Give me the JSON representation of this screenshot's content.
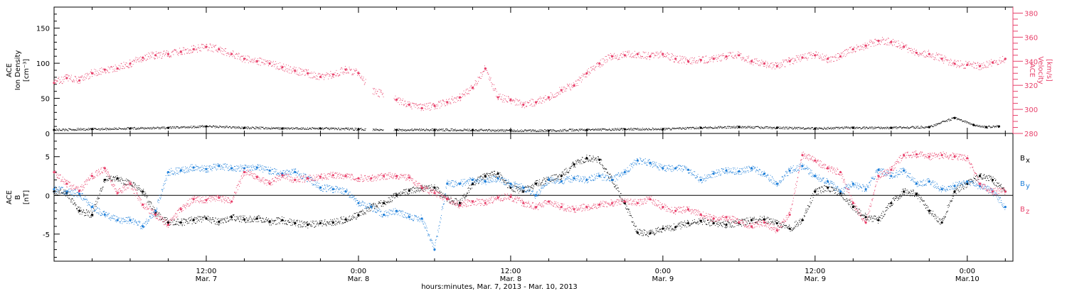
{
  "chart_data": [
    {
      "type": "scatter",
      "panel": "top",
      "ylabel_left": [
        "ACE",
        "Ion Density",
        "[cm⁻³]"
      ],
      "ylabel_right": [
        "ACE",
        "Velocity",
        "[km/s]"
      ],
      "ylim_left": [
        0,
        180
      ],
      "yticks_left": [
        0,
        50,
        100,
        150
      ],
      "ylim_right": [
        280,
        385
      ],
      "yticks_right": [
        280,
        300,
        320,
        340,
        360,
        380
      ],
      "series": [
        {
          "axis": "left",
          "color": "#000000",
          "x": [
            0,
            3,
            6,
            9,
            12,
            15,
            18,
            21,
            24,
            27,
            30,
            33,
            36,
            39,
            42,
            45,
            48,
            51,
            54,
            57,
            60,
            63,
            66,
            69,
            71,
            72.5,
            73.5,
            74.5
          ],
          "y": [
            5,
            6,
            7,
            8,
            10,
            8,
            7,
            7,
            6,
            5,
            5,
            5,
            4,
            4,
            5,
            6,
            6,
            8,
            9,
            8,
            7,
            8,
            8,
            9,
            22,
            12,
            9,
            10
          ]
        },
        {
          "axis": "right",
          "color": "#E8416B",
          "x": [
            0,
            1,
            2,
            3,
            4,
            5,
            6,
            7,
            8,
            9,
            10,
            11,
            12,
            13,
            14,
            15,
            16,
            17,
            18,
            19,
            20,
            21,
            22,
            23,
            24,
            25,
            26,
            27,
            28,
            29,
            30,
            31,
            32,
            33,
            34,
            35,
            36,
            37,
            38,
            39,
            40,
            41,
            42,
            43,
            44,
            45,
            46,
            47,
            48,
            49,
            50,
            51,
            52,
            53,
            54,
            55,
            56,
            57,
            58,
            59,
            60,
            61,
            62,
            63,
            64,
            65,
            66,
            67,
            68,
            69,
            70,
            71,
            72,
            73,
            74,
            75
          ],
          "y": [
            322,
            326,
            324,
            330,
            333,
            334,
            338,
            343,
            345,
            346,
            348,
            350,
            352,
            350,
            346,
            342,
            340,
            338,
            335,
            332,
            330,
            327,
            329,
            333,
            330,
            316,
            312,
            308,
            304,
            301,
            303,
            306,
            310,
            318,
            334,
            310,
            308,
            304,
            306,
            310,
            316,
            320,
            330,
            338,
            344,
            345,
            346,
            344,
            346,
            342,
            340,
            341,
            342,
            344,
            345,
            340,
            338,
            336,
            340,
            343,
            345,
            342,
            344,
            350,
            353,
            357,
            356,
            352,
            347,
            346,
            342,
            338,
            337,
            336,
            339,
            342
          ]
        }
      ]
    },
    {
      "type": "scatter",
      "panel": "bottom",
      "ylabel_left": [
        "ACE",
        "B",
        "[nT]"
      ],
      "ylim": [
        -8.5,
        8
      ],
      "yticks": [
        -5,
        0,
        5
      ],
      "legend_position": "right",
      "legend": [
        {
          "label": "B",
          "sub": "x",
          "color": "#000000"
        },
        {
          "label": "B",
          "sub": "y",
          "color": "#1E7FD9"
        },
        {
          "label": "B",
          "sub": "z",
          "color": "#E8416B"
        }
      ],
      "series": [
        {
          "name": "Bx",
          "color": "#000000",
          "x": [
            0,
            1,
            2,
            3,
            4,
            5,
            6,
            7,
            8,
            9,
            10,
            11,
            12,
            13,
            14,
            15,
            16,
            17,
            18,
            19,
            20,
            21,
            22,
            23,
            24,
            25,
            26,
            27,
            28,
            29,
            30,
            31,
            32,
            33,
            34,
            35,
            36,
            37,
            38,
            39,
            40,
            41,
            42,
            43,
            44,
            45,
            46,
            47,
            48,
            49,
            50,
            51,
            52,
            53,
            54,
            55,
            56,
            57,
            58,
            59,
            60,
            61,
            62,
            63,
            64,
            65,
            66,
            67,
            68,
            69,
            70,
            71,
            72,
            73,
            74,
            75
          ],
          "y": [
            0.5,
            0.3,
            -2,
            -2.5,
            2,
            2.2,
            1.5,
            0.5,
            -2.3,
            -3.5,
            -3.5,
            -3.2,
            -3,
            -3.4,
            -2.8,
            -3.1,
            -3,
            -3.4,
            -3.2,
            -3.6,
            -3.8,
            -3.6,
            -3.5,
            -3.1,
            -2.6,
            -1.5,
            -1,
            0,
            0.6,
            0.9,
            1,
            -0.5,
            -1,
            1.5,
            2.5,
            2.8,
            1,
            0.5,
            1.5,
            2,
            2.5,
            4,
            4.8,
            4.6,
            2,
            -1,
            -4.8,
            -4.9,
            -4.3,
            -4.1,
            -3.6,
            -3.3,
            -3.6,
            -3.8,
            -3.6,
            -3.2,
            -3.1,
            -3.6,
            -4.3,
            -3.2,
            0.5,
            1,
            0.3,
            -1.5,
            -2.8,
            -3.2,
            -1,
            0.5,
            0.2,
            -2,
            -3.5,
            0.5,
            1.5,
            2.5,
            2,
            0.5
          ]
        },
        {
          "name": "By",
          "color": "#1E7FD9",
          "x": [
            0,
            1,
            2,
            3,
            4,
            5,
            6,
            7,
            8,
            9,
            10,
            11,
            12,
            13,
            14,
            15,
            16,
            17,
            18,
            19,
            20,
            21,
            22,
            23,
            24,
            25,
            26,
            27,
            28,
            29,
            30,
            31,
            32,
            33,
            34,
            35,
            36,
            37,
            38,
            39,
            40,
            41,
            42,
            43,
            44,
            45,
            46,
            47,
            48,
            49,
            50,
            51,
            52,
            53,
            54,
            55,
            56,
            57,
            58,
            59,
            60,
            61,
            62,
            63,
            64,
            65,
            66,
            67,
            68,
            69,
            70,
            71,
            72,
            73,
            74,
            75
          ],
          "y": [
            0.8,
            0.5,
            0.2,
            -1.5,
            -2.5,
            -3.2,
            -3.2,
            -4,
            -2,
            3,
            3.2,
            3.6,
            3.4,
            3.8,
            3.5,
            3.5,
            3.6,
            3.2,
            2.8,
            3,
            2.2,
            1,
            0.8,
            0.5,
            -1,
            -1.5,
            -2.5,
            -2,
            -2.8,
            -3,
            -7,
            1.5,
            1.5,
            2,
            1.8,
            2.2,
            1.5,
            1,
            0,
            2,
            1.8,
            2.2,
            2,
            2.5,
            2,
            3,
            4.5,
            4.2,
            3.5,
            3.5,
            3.3,
            2,
            2.8,
            3.2,
            3.1,
            3.5,
            2.8,
            1.5,
            3.2,
            3.8,
            2.5,
            1.8,
            0.5,
            1.5,
            0.8,
            3.3,
            2.5,
            3.2,
            1.5,
            1.8,
            0.8,
            1.2,
            1.8,
            1.2,
            0.5,
            -1.5
          ]
        },
        {
          "name": "Bz",
          "color": "#E8416B",
          "x": [
            0,
            1,
            2,
            3,
            4,
            5,
            6,
            7,
            8,
            9,
            10,
            11,
            12,
            13,
            14,
            15,
            16,
            17,
            18,
            19,
            20,
            21,
            22,
            23,
            24,
            25,
            26,
            27,
            28,
            29,
            30,
            31,
            32,
            33,
            34,
            35,
            36,
            37,
            38,
            39,
            40,
            41,
            42,
            43,
            44,
            45,
            46,
            47,
            48,
            49,
            50,
            51,
            52,
            53,
            54,
            55,
            56,
            57,
            58,
            59,
            60,
            61,
            62,
            63,
            64,
            65,
            66,
            67,
            68,
            69,
            70,
            71,
            72,
            73,
            74,
            75
          ],
          "y": [
            3,
            1.5,
            0.6,
            2.5,
            3.5,
            0.3,
            1.5,
            -1.2,
            -2.5,
            -3.8,
            -1.8,
            -0.5,
            -0.6,
            -0.3,
            -0.8,
            3,
            2.4,
            1.5,
            2.6,
            2,
            2.2,
            2.4,
            2.6,
            2.5,
            2.2,
            2.2,
            2.5,
            2.5,
            2.3,
            1,
            0.3,
            -0.5,
            -1.3,
            -0.8,
            -1,
            -0.3,
            -0.2,
            -1,
            -1.5,
            -0.8,
            -1.5,
            -1.8,
            -1.5,
            -1.2,
            -1,
            -0.8,
            -1,
            -0.5,
            -1.5,
            -2,
            -1.8,
            -2.5,
            -3,
            -2.8,
            -3.5,
            -4,
            -3.5,
            -4.5,
            -2.5,
            5.2,
            4.5,
            3.5,
            3,
            -1,
            -3.5,
            2.5,
            3.3,
            5.2,
            5.3,
            5,
            5.2,
            5,
            4.8,
            1.5,
            0.5,
            0.5
          ]
        }
      ]
    }
  ],
  "x_axis": {
    "range_hours": [
      0,
      75.6
    ],
    "tick_hours": [
      12,
      24,
      36,
      48,
      60,
      72
    ],
    "tick_labels": [
      {
        "time": "12:00",
        "date": "Mar. 7"
      },
      {
        "time": "0:00",
        "date": "Mar. 8"
      },
      {
        "time": "12:00",
        "date": "Mar. 8"
      },
      {
        "time": "0:00",
        "date": "Mar. 9"
      },
      {
        "time": "12:00",
        "date": "Mar. 9"
      },
      {
        "time": "0:00",
        "date": "Mar.10"
      }
    ],
    "xlabel": "hours:minutes, Mar.  7, 2013 - Mar. 10, 2013"
  }
}
